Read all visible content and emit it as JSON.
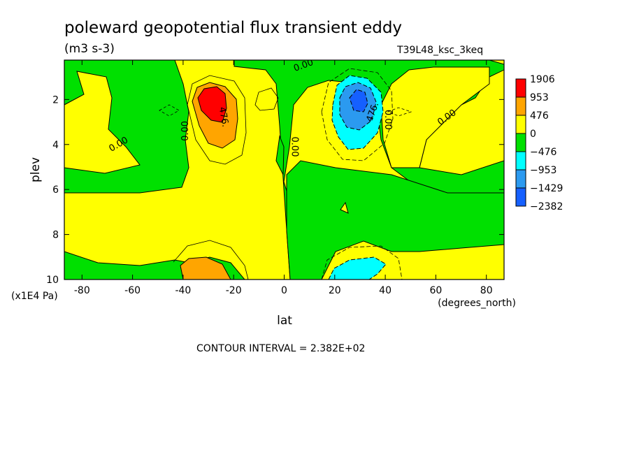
{
  "chart_data": {
    "type": "heatmap",
    "title": "poleward geopotential flux transient eddy",
    "units": "(m3 s-3)",
    "run_label": "T39L48_ksc_3keq",
    "xlabel": "lat",
    "xunits": "(degrees_north)",
    "ylabel": "plev",
    "yunits": "(x1E4 Pa)",
    "xlim": [
      -87,
      87
    ],
    "ylim": [
      10,
      0.25
    ],
    "xticks": [
      -80,
      -60,
      -40,
      -20,
      0,
      20,
      40,
      60,
      80
    ],
    "yticks": [
      2,
      4,
      6,
      8,
      10
    ],
    "contour_interval_text": "CONTOUR INTERVAL = 2.382E+02",
    "legend": {
      "placement": "right",
      "levels": [
        "1906",
        "953",
        "476",
        "0",
        "−476",
        "−953",
        "−1429",
        "−2382"
      ],
      "colors": [
        "#ff0000",
        "#ffa500",
        "#ffff00",
        "#00e000",
        "#00ffff",
        "#2b9af0",
        "#1560ff"
      ]
    },
    "contour_labels": [
      {
        "text": "476.",
        "x": -25,
        "y": 2.8,
        "angle": 80
      },
      {
        "text": "0.00",
        "x": -38,
        "y": 3.4,
        "angle": -90
      },
      {
        "text": "0.00",
        "x": -65,
        "y": 4.1,
        "angle": -30
      },
      {
        "text": "0.00",
        "x": 3,
        "y": 4.1,
        "angle": 90
      },
      {
        "text": "0.00",
        "x": 8,
        "y": 0.6,
        "angle": -20
      },
      {
        "text": "476.",
        "x": 36,
        "y": 2.6,
        "angle": -70
      },
      {
        "text": "0.00",
        "x": 40,
        "y": 2.9,
        "angle": 90
      },
      {
        "text": "0.00",
        "x": 65,
        "y": 2.9,
        "angle": -35
      }
    ],
    "features": [
      {
        "name": "positive maximum",
        "lat": -28,
        "plev": 2.0,
        "value": "≥ 1906"
      },
      {
        "name": "negative minimum",
        "lat": 30,
        "plev": 2.0,
        "value": "≤ -1429"
      },
      {
        "name": "surface positive",
        "lat": -28,
        "plev": 9.4,
        "value": "476 to 953"
      },
      {
        "name": "surface negative",
        "lat": 30,
        "plev": 9.5,
        "value": "-953 to -476"
      }
    ]
  }
}
